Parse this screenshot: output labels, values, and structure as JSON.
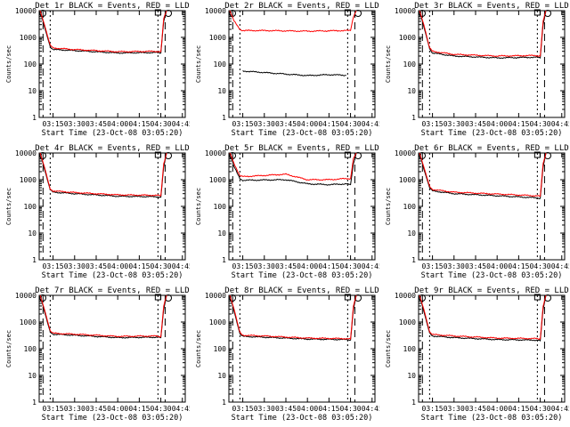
{
  "shared": {
    "ylabel": "Counts/sec",
    "xlabel": "Start Time (23-Oct-08 03:05:20)",
    "xticks": [
      "03:15",
      "03:30",
      "03:45",
      "04:00",
      "04:15",
      "04:30",
      "04:45"
    ],
    "yticks": [
      "1",
      "10",
      "100",
      "1000",
      "10000"
    ]
  },
  "chart_data": [
    {
      "type": "line",
      "title": "Det 1r BLACK = Events, RED = LLD",
      "xlim": [
        "03:05:20",
        "04:47"
      ],
      "ylim": [
        1,
        10000
      ],
      "yscale": "log",
      "series": [
        {
          "name": "Events",
          "color": "#000000",
          "x": [
            "03:06",
            "03:09",
            "03:13",
            "03:15",
            "03:30",
            "04:00",
            "04:27",
            "04:30",
            "04:32",
            "04:34"
          ],
          "values": [
            10000,
            2500,
            450,
            350,
            320,
            260,
            270,
            260,
            4000,
            10000
          ]
        },
        {
          "name": "LLD",
          "color": "#ff0000",
          "x": [
            "03:06",
            "03:09",
            "03:13",
            "03:15",
            "03:30",
            "04:00",
            "04:27",
            "04:30",
            "04:32",
            "04:34"
          ],
          "values": [
            10000,
            3000,
            500,
            400,
            350,
            290,
            300,
            290,
            5000,
            10000
          ]
        }
      ]
    },
    {
      "type": "line",
      "title": "Det 2r BLACK = Events, RED = LLD",
      "xlim": [
        "03:05:20",
        "04:47"
      ],
      "ylim": [
        1,
        10000
      ],
      "yscale": "log",
      "series": [
        {
          "name": "Events",
          "color": "#000000",
          "x": [
            "03:15",
            "03:30",
            "03:45",
            "04:00",
            "04:15",
            "04:27"
          ],
          "values": [
            55,
            48,
            42,
            37,
            40,
            38
          ]
        },
        {
          "name": "LLD",
          "color": "#ff0000",
          "x": [
            "03:06",
            "03:09",
            "03:13",
            "03:15",
            "03:30",
            "04:00",
            "04:27",
            "04:30",
            "04:32",
            "04:34"
          ],
          "values": [
            10000,
            4000,
            2000,
            1800,
            1800,
            1700,
            1800,
            1800,
            6000,
            10000
          ]
        }
      ]
    },
    {
      "type": "line",
      "title": "Det 3r BLACK = Events, RED = LLD",
      "xlim": [
        "03:05:20",
        "04:47"
      ],
      "ylim": [
        1,
        10000
      ],
      "yscale": "log",
      "series": [
        {
          "name": "Events",
          "color": "#000000",
          "x": [
            "03:06",
            "03:09",
            "03:13",
            "03:15",
            "03:30",
            "04:00",
            "04:27",
            "04:30",
            "04:32",
            "04:34"
          ],
          "values": [
            10000,
            2500,
            380,
            260,
            200,
            170,
            180,
            170,
            3000,
            10000
          ]
        },
        {
          "name": "LLD",
          "color": "#ff0000",
          "x": [
            "03:06",
            "03:09",
            "03:13",
            "03:15",
            "03:30",
            "04:00",
            "04:27",
            "04:30",
            "04:32",
            "04:34"
          ],
          "values": [
            10000,
            3000,
            400,
            300,
            230,
            200,
            210,
            200,
            4000,
            10000
          ]
        }
      ]
    },
    {
      "type": "line",
      "title": "Det 4r BLACK = Events, RED = LLD",
      "xlim": [
        "03:05:20",
        "04:47"
      ],
      "ylim": [
        1,
        10000
      ],
      "yscale": "log",
      "series": [
        {
          "name": "Events",
          "color": "#000000",
          "x": [
            "03:06",
            "03:09",
            "03:13",
            "03:15",
            "03:30",
            "04:00",
            "04:27",
            "04:30",
            "04:32",
            "04:34"
          ],
          "values": [
            10000,
            2500,
            420,
            340,
            300,
            240,
            230,
            220,
            3000,
            10000
          ]
        },
        {
          "name": "LLD",
          "color": "#ff0000",
          "x": [
            "03:06",
            "03:09",
            "03:13",
            "03:15",
            "03:30",
            "04:00",
            "04:27",
            "04:30",
            "04:32",
            "04:34"
          ],
          "values": [
            10000,
            3000,
            450,
            380,
            330,
            270,
            260,
            250,
            4000,
            10000
          ]
        }
      ]
    },
    {
      "type": "line",
      "title": "Det 5r BLACK = Events, RED = LLD",
      "xlim": [
        "03:05:20",
        "04:47"
      ],
      "ylim": [
        1,
        10000
      ],
      "yscale": "log",
      "series": [
        {
          "name": "Events",
          "color": "#000000",
          "x": [
            "03:06",
            "03:09",
            "03:13",
            "03:15",
            "03:45",
            "04:00",
            "04:15",
            "04:27",
            "04:30",
            "04:32",
            "04:34"
          ],
          "values": [
            10000,
            3000,
            1100,
            950,
            1000,
            700,
            650,
            700,
            650,
            4000,
            10000
          ]
        },
        {
          "name": "LLD",
          "color": "#ff0000",
          "x": [
            "03:06",
            "03:09",
            "03:13",
            "03:15",
            "03:45",
            "04:00",
            "04:15",
            "04:27",
            "04:30",
            "04:32",
            "04:34"
          ],
          "values": [
            10000,
            4000,
            1400,
            1300,
            1600,
            1000,
            1000,
            1100,
            1100,
            6000,
            10000
          ]
        }
      ]
    },
    {
      "type": "line",
      "title": "Det 6r BLACK = Events, RED = LLD",
      "xlim": [
        "03:05:20",
        "04:47"
      ],
      "ylim": [
        1,
        10000
      ],
      "yscale": "log",
      "series": [
        {
          "name": "Events",
          "color": "#000000",
          "x": [
            "03:06",
            "03:09",
            "03:13",
            "03:15",
            "03:30",
            "04:00",
            "04:27",
            "04:30",
            "04:32",
            "04:34"
          ],
          "values": [
            10000,
            2500,
            500,
            380,
            300,
            250,
            210,
            200,
            3000,
            10000
          ]
        },
        {
          "name": "LLD",
          "color": "#ff0000",
          "x": [
            "03:06",
            "03:09",
            "03:13",
            "03:15",
            "03:30",
            "04:00",
            "04:27",
            "04:30",
            "04:32",
            "04:34"
          ],
          "values": [
            10000,
            3000,
            560,
            430,
            340,
            290,
            250,
            240,
            4000,
            10000
          ]
        }
      ]
    },
    {
      "type": "line",
      "title": "Det 7r BLACK = Events, RED = LLD",
      "xlim": [
        "03:05:20",
        "04:47"
      ],
      "ylim": [
        1,
        10000
      ],
      "yscale": "log",
      "series": [
        {
          "name": "Events",
          "color": "#000000",
          "x": [
            "03:06",
            "03:09",
            "03:13",
            "03:15",
            "03:30",
            "04:00",
            "04:27",
            "04:30",
            "04:32",
            "04:34"
          ],
          "values": [
            10000,
            2500,
            420,
            350,
            320,
            260,
            270,
            260,
            3000,
            10000
          ]
        },
        {
          "name": "LLD",
          "color": "#ff0000",
          "x": [
            "03:06",
            "03:09",
            "03:13",
            "03:15",
            "03:30",
            "04:00",
            "04:27",
            "04:30",
            "04:32",
            "04:34"
          ],
          "values": [
            10000,
            3000,
            470,
            380,
            350,
            290,
            300,
            280,
            4000,
            10000
          ]
        }
      ]
    },
    {
      "type": "line",
      "title": "Det 8r BLACK = Events, RED = LLD",
      "xlim": [
        "03:05:20",
        "04:47"
      ],
      "ylim": [
        1,
        10000
      ],
      "yscale": "log",
      "series": [
        {
          "name": "Events",
          "color": "#000000",
          "x": [
            "03:06",
            "03:09",
            "03:13",
            "03:15",
            "03:30",
            "04:00",
            "04:27",
            "04:30",
            "04:32",
            "04:34"
          ],
          "values": [
            10000,
            2500,
            360,
            290,
            270,
            230,
            220,
            210,
            3000,
            10000
          ]
        },
        {
          "name": "LLD",
          "color": "#ff0000",
          "x": [
            "03:06",
            "03:09",
            "03:13",
            "03:15",
            "03:30",
            "04:00",
            "04:27",
            "04:30",
            "04:32",
            "04:34"
          ],
          "values": [
            10000,
            3000,
            400,
            320,
            300,
            250,
            240,
            230,
            4000,
            10000
          ]
        }
      ]
    },
    {
      "type": "line",
      "title": "Det 9r BLACK = Events, RED = LLD",
      "xlim": [
        "03:05:20",
        "04:47"
      ],
      "ylim": [
        1,
        10000
      ],
      "yscale": "log",
      "series": [
        {
          "name": "Events",
          "color": "#000000",
          "x": [
            "03:06",
            "03:09",
            "03:13",
            "03:15",
            "03:30",
            "04:00",
            "04:27",
            "04:30",
            "04:32",
            "04:34"
          ],
          "values": [
            10000,
            2500,
            380,
            300,
            260,
            220,
            210,
            200,
            3000,
            10000
          ]
        },
        {
          "name": "LLD",
          "color": "#ff0000",
          "x": [
            "03:06",
            "03:09",
            "03:13",
            "03:15",
            "03:30",
            "04:00",
            "04:27",
            "04:30",
            "04:32",
            "04:34"
          ],
          "values": [
            10000,
            3000,
            430,
            340,
            300,
            250,
            240,
            230,
            4000,
            10000
          ]
        }
      ]
    }
  ]
}
